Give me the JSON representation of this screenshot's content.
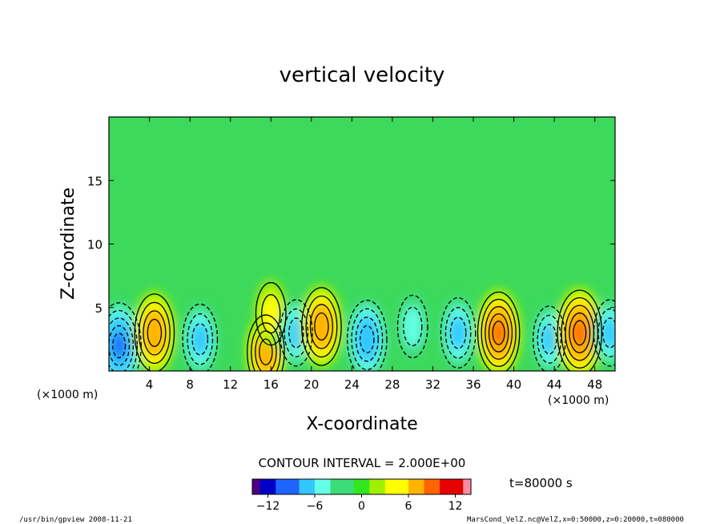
{
  "chart_data": {
    "type": "heatmap",
    "title": "vertical velocity",
    "xlabel": "X-coordinate",
    "ylabel": "Z-coordinate",
    "x_unit": "(×1000 m)",
    "y_unit": "(×1000 m)",
    "xlim": [
      0,
      50
    ],
    "ylim": [
      0,
      20
    ],
    "x_ticks": [
      4,
      8,
      12,
      16,
      20,
      24,
      28,
      32,
      36,
      40,
      44,
      48
    ],
    "y_ticks": [
      5,
      10,
      15
    ],
    "contour_interval_text": "CONTOUR INTERVAL = 2.000E+00",
    "colorbar": {
      "min": -14,
      "max": 14,
      "ticks": [
        -12,
        -6,
        0,
        6,
        12
      ],
      "colors": [
        "#4b0082",
        "#0000c8",
        "#1e64ff",
        "#32c8ff",
        "#64ffe6",
        "#3cdc78",
        "#32e61e",
        "#a0f000",
        "#ffff00",
        "#ffb400",
        "#ff6400",
        "#e60000",
        "#ff8ca0"
      ]
    },
    "time_label": "t=80000 s",
    "cells": [
      {
        "x": 1.0,
        "z": 2.0,
        "w": -10
      },
      {
        "x": 4.5,
        "z": 3.0,
        "w": 8
      },
      {
        "x": 9.0,
        "z": 2.5,
        "w": -6
      },
      {
        "x": 15.5,
        "z": 1.5,
        "w": 7
      },
      {
        "x": 16.0,
        "z": 4.5,
        "w": 4
      },
      {
        "x": 18.5,
        "z": 3.0,
        "w": -5
      },
      {
        "x": 21.0,
        "z": 3.5,
        "w": 8
      },
      {
        "x": 25.5,
        "z": 2.5,
        "w": -8
      },
      {
        "x": 30.0,
        "z": 3.5,
        "w": -4
      },
      {
        "x": 34.5,
        "z": 3.0,
        "w": -6
      },
      {
        "x": 38.5,
        "z": 3.0,
        "w": 9
      },
      {
        "x": 43.5,
        "z": 2.5,
        "w": -5
      },
      {
        "x": 46.5,
        "z": 3.0,
        "w": 10
      },
      {
        "x": 49.5,
        "z": 3.0,
        "w": -5
      }
    ]
  },
  "footer": {
    "left": "/usr/bin/gpview  2008-11-21",
    "right": "MarsCond_VelZ.nc@VelZ,x=0:50000,z=0:20000,t=080000"
  }
}
